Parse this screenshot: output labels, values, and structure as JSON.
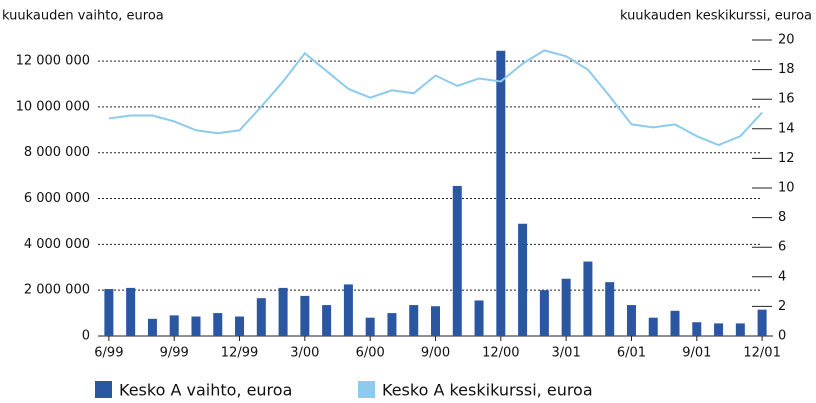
{
  "chart_data": {
    "type": "bar-line",
    "y_label": "kuukauden vaihto, euroa",
    "y2_label": "kuukauden keskikurssi, euroa",
    "categories": [
      "6/99",
      null,
      null,
      "9/99",
      null,
      null,
      "12/99",
      null,
      null,
      "3/00",
      null,
      null,
      "6/00",
      null,
      null,
      "9/00",
      null,
      null,
      "12/00",
      null,
      null,
      "3/01",
      null,
      null,
      "6/01",
      null,
      null,
      "9/01",
      null,
      null,
      "12/01"
    ],
    "series": [
      {
        "name": "Kesko A vaihto, euroa",
        "color": "#2b56a2",
        "type": "bar",
        "values": [
          2050000,
          2100000,
          750000,
          900000,
          850000,
          1000000,
          850000,
          1650000,
          2100000,
          1750000,
          1350000,
          2250000,
          800000,
          1000000,
          1350000,
          1300000,
          6550000,
          1550000,
          12450000,
          4900000,
          2000000,
          2500000,
          3250000,
          2350000,
          1350000,
          800000,
          1100000,
          600000,
          550000,
          550000,
          1150000
        ]
      },
      {
        "name": "Kesko A keskikurssi, euroa",
        "color": "#8ccbeb",
        "type": "line",
        "axis": "y2",
        "values": [
          14.7,
          14.9,
          14.9,
          14.5,
          13.9,
          13.7,
          13.9,
          15.5,
          17.2,
          19.1,
          17.9,
          16.7,
          16.1,
          16.6,
          16.4,
          17.6,
          16.9,
          17.4,
          17.2,
          18.4,
          19.3,
          18.9,
          18.0,
          16.2,
          14.3,
          14.1,
          14.3,
          13.5,
          12.9,
          13.5,
          15.1
        ]
      }
    ],
    "ylim": [
      0,
      12920000
    ],
    "yticks": [
      0,
      {
        "value": 2000000,
        "label": "2 000 000"
      },
      {
        "value": 4000000,
        "label": "4 000 000"
      },
      {
        "value": 6000000,
        "label": "6 000 000"
      },
      {
        "value": 8000000,
        "label": "8 000 000"
      },
      {
        "value": 10000000,
        "label": "10 000 000"
      },
      {
        "value": 12000000,
        "label": "12 000 000"
      }
    ],
    "y2lim": [
      0,
      20
    ],
    "y2ticks": [
      0,
      2,
      4,
      6,
      8,
      10,
      12,
      14,
      16,
      18,
      20
    ],
    "grid": true,
    "legend": "bottom"
  }
}
